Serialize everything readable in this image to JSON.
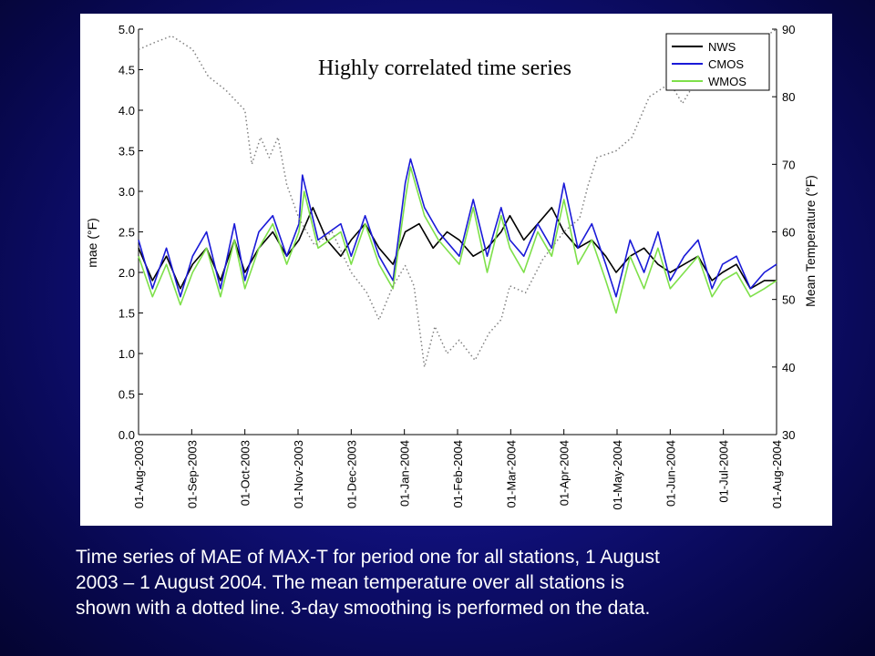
{
  "chart_data": {
    "type": "line",
    "title": "Highly correlated time series",
    "ylabel": "mae (°F)",
    "ylabel_right": "Mean Temperature (°F)",
    "ylim": [
      0,
      5
    ],
    "ylim_right": [
      30,
      90
    ],
    "y_ticks": [
      "0.0",
      "0.5",
      "1.0",
      "1.5",
      "2.0",
      "2.5",
      "3.0",
      "3.5",
      "4.0",
      "4.5",
      "5.0"
    ],
    "y_ticks_right": [
      "30",
      "40",
      "50",
      "60",
      "70",
      "80",
      "90"
    ],
    "x_ticks": [
      "01-Aug-2003",
      "01-Sep-2003",
      "01-Oct-2003",
      "01-Nov-2003",
      "01-Dec-2003",
      "01-Jan-2004",
      "01-Feb-2004",
      "01-Mar-2004",
      "01-Apr-2004",
      "01-May-2004",
      "01-Jun-2004",
      "01-Jul-2004",
      "01-Aug-2004"
    ],
    "x_range": [
      "2003-08-01",
      "2004-08-01"
    ],
    "grid": false,
    "legend_position": "top-right",
    "series": [
      {
        "name": "NWS",
        "color": "#000000",
        "style": "solid",
        "axis": "left",
        "points": [
          [
            "2003-08-01",
            2.3
          ],
          [
            "2003-08-09",
            1.9
          ],
          [
            "2003-08-17",
            2.2
          ],
          [
            "2003-08-25",
            1.8
          ],
          [
            "2003-09-01",
            2.1
          ],
          [
            "2003-09-09",
            2.3
          ],
          [
            "2003-09-17",
            1.9
          ],
          [
            "2003-09-25",
            2.4
          ],
          [
            "2003-10-01",
            2.0
          ],
          [
            "2003-10-09",
            2.3
          ],
          [
            "2003-10-17",
            2.5
          ],
          [
            "2003-10-25",
            2.2
          ],
          [
            "2003-11-01",
            2.4
          ],
          [
            "2003-11-09",
            2.8
          ],
          [
            "2003-11-17",
            2.4
          ],
          [
            "2003-11-25",
            2.2
          ],
          [
            "2003-12-01",
            2.4
          ],
          [
            "2003-12-09",
            2.6
          ],
          [
            "2003-12-17",
            2.3
          ],
          [
            "2003-12-25",
            2.1
          ],
          [
            "2004-01-01",
            2.5
          ],
          [
            "2004-01-09",
            2.6
          ],
          [
            "2004-01-17",
            2.3
          ],
          [
            "2004-01-25",
            2.5
          ],
          [
            "2004-02-01",
            2.4
          ],
          [
            "2004-02-09",
            2.2
          ],
          [
            "2004-02-17",
            2.3
          ],
          [
            "2004-02-25",
            2.5
          ],
          [
            "2004-03-01",
            2.7
          ],
          [
            "2004-03-09",
            2.4
          ],
          [
            "2004-03-17",
            2.6
          ],
          [
            "2004-03-25",
            2.8
          ],
          [
            "2004-04-01",
            2.5
          ],
          [
            "2004-04-09",
            2.3
          ],
          [
            "2004-04-17",
            2.4
          ],
          [
            "2004-04-25",
            2.2
          ],
          [
            "2004-05-01",
            2.0
          ],
          [
            "2004-05-09",
            2.2
          ],
          [
            "2004-05-17",
            2.3
          ],
          [
            "2004-05-25",
            2.1
          ],
          [
            "2004-06-01",
            2.0
          ],
          [
            "2004-06-09",
            2.1
          ],
          [
            "2004-06-17",
            2.2
          ],
          [
            "2004-06-25",
            1.9
          ],
          [
            "2004-07-01",
            2.0
          ],
          [
            "2004-07-09",
            2.1
          ],
          [
            "2004-07-17",
            1.8
          ],
          [
            "2004-07-25",
            1.9
          ],
          [
            "2004-08-01",
            1.9
          ]
        ]
      },
      {
        "name": "CMOS",
        "color": "#1a1ad8",
        "style": "solid",
        "axis": "left",
        "points": [
          [
            "2003-08-01",
            2.4
          ],
          [
            "2003-08-09",
            1.8
          ],
          [
            "2003-08-17",
            2.3
          ],
          [
            "2003-08-25",
            1.7
          ],
          [
            "2003-09-01",
            2.2
          ],
          [
            "2003-09-09",
            2.5
          ],
          [
            "2003-09-17",
            1.8
          ],
          [
            "2003-09-25",
            2.6
          ],
          [
            "2003-10-01",
            1.9
          ],
          [
            "2003-10-09",
            2.5
          ],
          [
            "2003-10-17",
            2.7
          ],
          [
            "2003-10-25",
            2.2
          ],
          [
            "2003-11-01",
            2.6
          ],
          [
            "2003-11-03",
            3.2
          ],
          [
            "2003-11-12",
            2.4
          ],
          [
            "2003-11-25",
            2.6
          ],
          [
            "2003-12-01",
            2.2
          ],
          [
            "2003-12-09",
            2.7
          ],
          [
            "2003-12-17",
            2.2
          ],
          [
            "2003-12-25",
            1.9
          ],
          [
            "2004-01-01",
            3.1
          ],
          [
            "2004-01-04",
            3.4
          ],
          [
            "2004-01-12",
            2.8
          ],
          [
            "2004-01-20",
            2.5
          ],
          [
            "2004-02-01",
            2.2
          ],
          [
            "2004-02-09",
            2.9
          ],
          [
            "2004-02-17",
            2.2
          ],
          [
            "2004-02-25",
            2.8
          ],
          [
            "2004-03-01",
            2.4
          ],
          [
            "2004-03-09",
            2.2
          ],
          [
            "2004-03-17",
            2.6
          ],
          [
            "2004-03-25",
            2.3
          ],
          [
            "2004-04-01",
            3.1
          ],
          [
            "2004-04-09",
            2.3
          ],
          [
            "2004-04-17",
            2.6
          ],
          [
            "2004-04-25",
            2.1
          ],
          [
            "2004-05-01",
            1.7
          ],
          [
            "2004-05-09",
            2.4
          ],
          [
            "2004-05-17",
            2.0
          ],
          [
            "2004-05-25",
            2.5
          ],
          [
            "2004-06-01",
            1.9
          ],
          [
            "2004-06-09",
            2.2
          ],
          [
            "2004-06-17",
            2.4
          ],
          [
            "2004-06-25",
            1.8
          ],
          [
            "2004-07-01",
            2.1
          ],
          [
            "2004-07-09",
            2.2
          ],
          [
            "2004-07-17",
            1.8
          ],
          [
            "2004-07-25",
            2.0
          ],
          [
            "2004-08-01",
            2.1
          ]
        ]
      },
      {
        "name": "WMOS",
        "color": "#7ee04a",
        "style": "solid",
        "axis": "left",
        "points": [
          [
            "2003-08-01",
            2.2
          ],
          [
            "2003-08-09",
            1.7
          ],
          [
            "2003-08-17",
            2.1
          ],
          [
            "2003-08-25",
            1.6
          ],
          [
            "2003-09-01",
            2.0
          ],
          [
            "2003-09-09",
            2.3
          ],
          [
            "2003-09-17",
            1.7
          ],
          [
            "2003-09-25",
            2.4
          ],
          [
            "2003-10-01",
            1.8
          ],
          [
            "2003-10-09",
            2.3
          ],
          [
            "2003-10-17",
            2.6
          ],
          [
            "2003-10-25",
            2.1
          ],
          [
            "2003-11-01",
            2.5
          ],
          [
            "2003-11-04",
            3.0
          ],
          [
            "2003-11-12",
            2.3
          ],
          [
            "2003-11-25",
            2.5
          ],
          [
            "2003-12-01",
            2.1
          ],
          [
            "2003-12-09",
            2.6
          ],
          [
            "2003-12-17",
            2.1
          ],
          [
            "2003-12-25",
            1.8
          ],
          [
            "2004-01-01",
            2.9
          ],
          [
            "2004-01-04",
            3.3
          ],
          [
            "2004-01-12",
            2.7
          ],
          [
            "2004-01-20",
            2.4
          ],
          [
            "2004-02-01",
            2.1
          ],
          [
            "2004-02-09",
            2.8
          ],
          [
            "2004-02-17",
            2.0
          ],
          [
            "2004-02-25",
            2.7
          ],
          [
            "2004-03-01",
            2.3
          ],
          [
            "2004-03-09",
            2.0
          ],
          [
            "2004-03-17",
            2.5
          ],
          [
            "2004-03-25",
            2.2
          ],
          [
            "2004-04-01",
            2.9
          ],
          [
            "2004-04-09",
            2.1
          ],
          [
            "2004-04-17",
            2.4
          ],
          [
            "2004-04-25",
            1.9
          ],
          [
            "2004-05-01",
            1.5
          ],
          [
            "2004-05-09",
            2.2
          ],
          [
            "2004-05-17",
            1.8
          ],
          [
            "2004-05-25",
            2.3
          ],
          [
            "2004-06-01",
            1.8
          ],
          [
            "2004-06-09",
            2.0
          ],
          [
            "2004-06-17",
            2.2
          ],
          [
            "2004-06-25",
            1.7
          ],
          [
            "2004-07-01",
            1.9
          ],
          [
            "2004-07-09",
            2.0
          ],
          [
            "2004-07-17",
            1.7
          ],
          [
            "2004-07-25",
            1.8
          ],
          [
            "2004-08-01",
            1.9
          ]
        ]
      },
      {
        "name": "",
        "color": "#808080",
        "style": "dotted",
        "axis": "right",
        "points": [
          [
            "2003-08-01",
            87
          ],
          [
            "2003-08-10",
            88
          ],
          [
            "2003-08-20",
            89
          ],
          [
            "2003-09-01",
            87
          ],
          [
            "2003-09-10",
            83
          ],
          [
            "2003-09-20",
            81
          ],
          [
            "2003-10-01",
            78
          ],
          [
            "2003-10-05",
            70
          ],
          [
            "2003-10-10",
            74
          ],
          [
            "2003-10-15",
            71
          ],
          [
            "2003-10-20",
            74
          ],
          [
            "2003-10-25",
            67
          ],
          [
            "2003-11-01",
            62
          ],
          [
            "2003-11-10",
            58
          ],
          [
            "2003-11-20",
            60
          ],
          [
            "2003-12-01",
            54
          ],
          [
            "2003-12-10",
            51
          ],
          [
            "2003-12-17",
            47
          ],
          [
            "2003-12-25",
            52
          ],
          [
            "2004-01-01",
            55
          ],
          [
            "2004-01-06",
            52
          ],
          [
            "2004-01-12",
            40
          ],
          [
            "2004-01-18",
            46
          ],
          [
            "2004-01-25",
            42
          ],
          [
            "2004-02-01",
            44
          ],
          [
            "2004-02-10",
            41
          ],
          [
            "2004-02-18",
            45
          ],
          [
            "2004-02-25",
            47
          ],
          [
            "2004-03-01",
            52
          ],
          [
            "2004-03-10",
            51
          ],
          [
            "2004-03-20",
            56
          ],
          [
            "2004-04-01",
            60
          ],
          [
            "2004-04-10",
            62
          ],
          [
            "2004-04-15",
            67
          ],
          [
            "2004-04-20",
            71
          ],
          [
            "2004-05-01",
            72
          ],
          [
            "2004-05-10",
            74
          ],
          [
            "2004-05-20",
            80
          ],
          [
            "2004-06-01",
            82
          ],
          [
            "2004-06-08",
            79
          ],
          [
            "2004-06-15",
            82
          ],
          [
            "2004-06-25",
            84
          ],
          [
            "2004-07-01",
            83
          ],
          [
            "2004-07-10",
            86
          ],
          [
            "2004-07-20",
            88
          ],
          [
            "2004-08-01",
            90
          ]
        ]
      }
    ]
  },
  "caption": {
    "line1": "Time series of MAE of MAX-T for period one for all stations, 1 August",
    "line2": "2003 – 1 August 2004.  The mean temperature over all stations is",
    "line3": "shown with a dotted line.  3-day smoothing is performed on the data."
  }
}
